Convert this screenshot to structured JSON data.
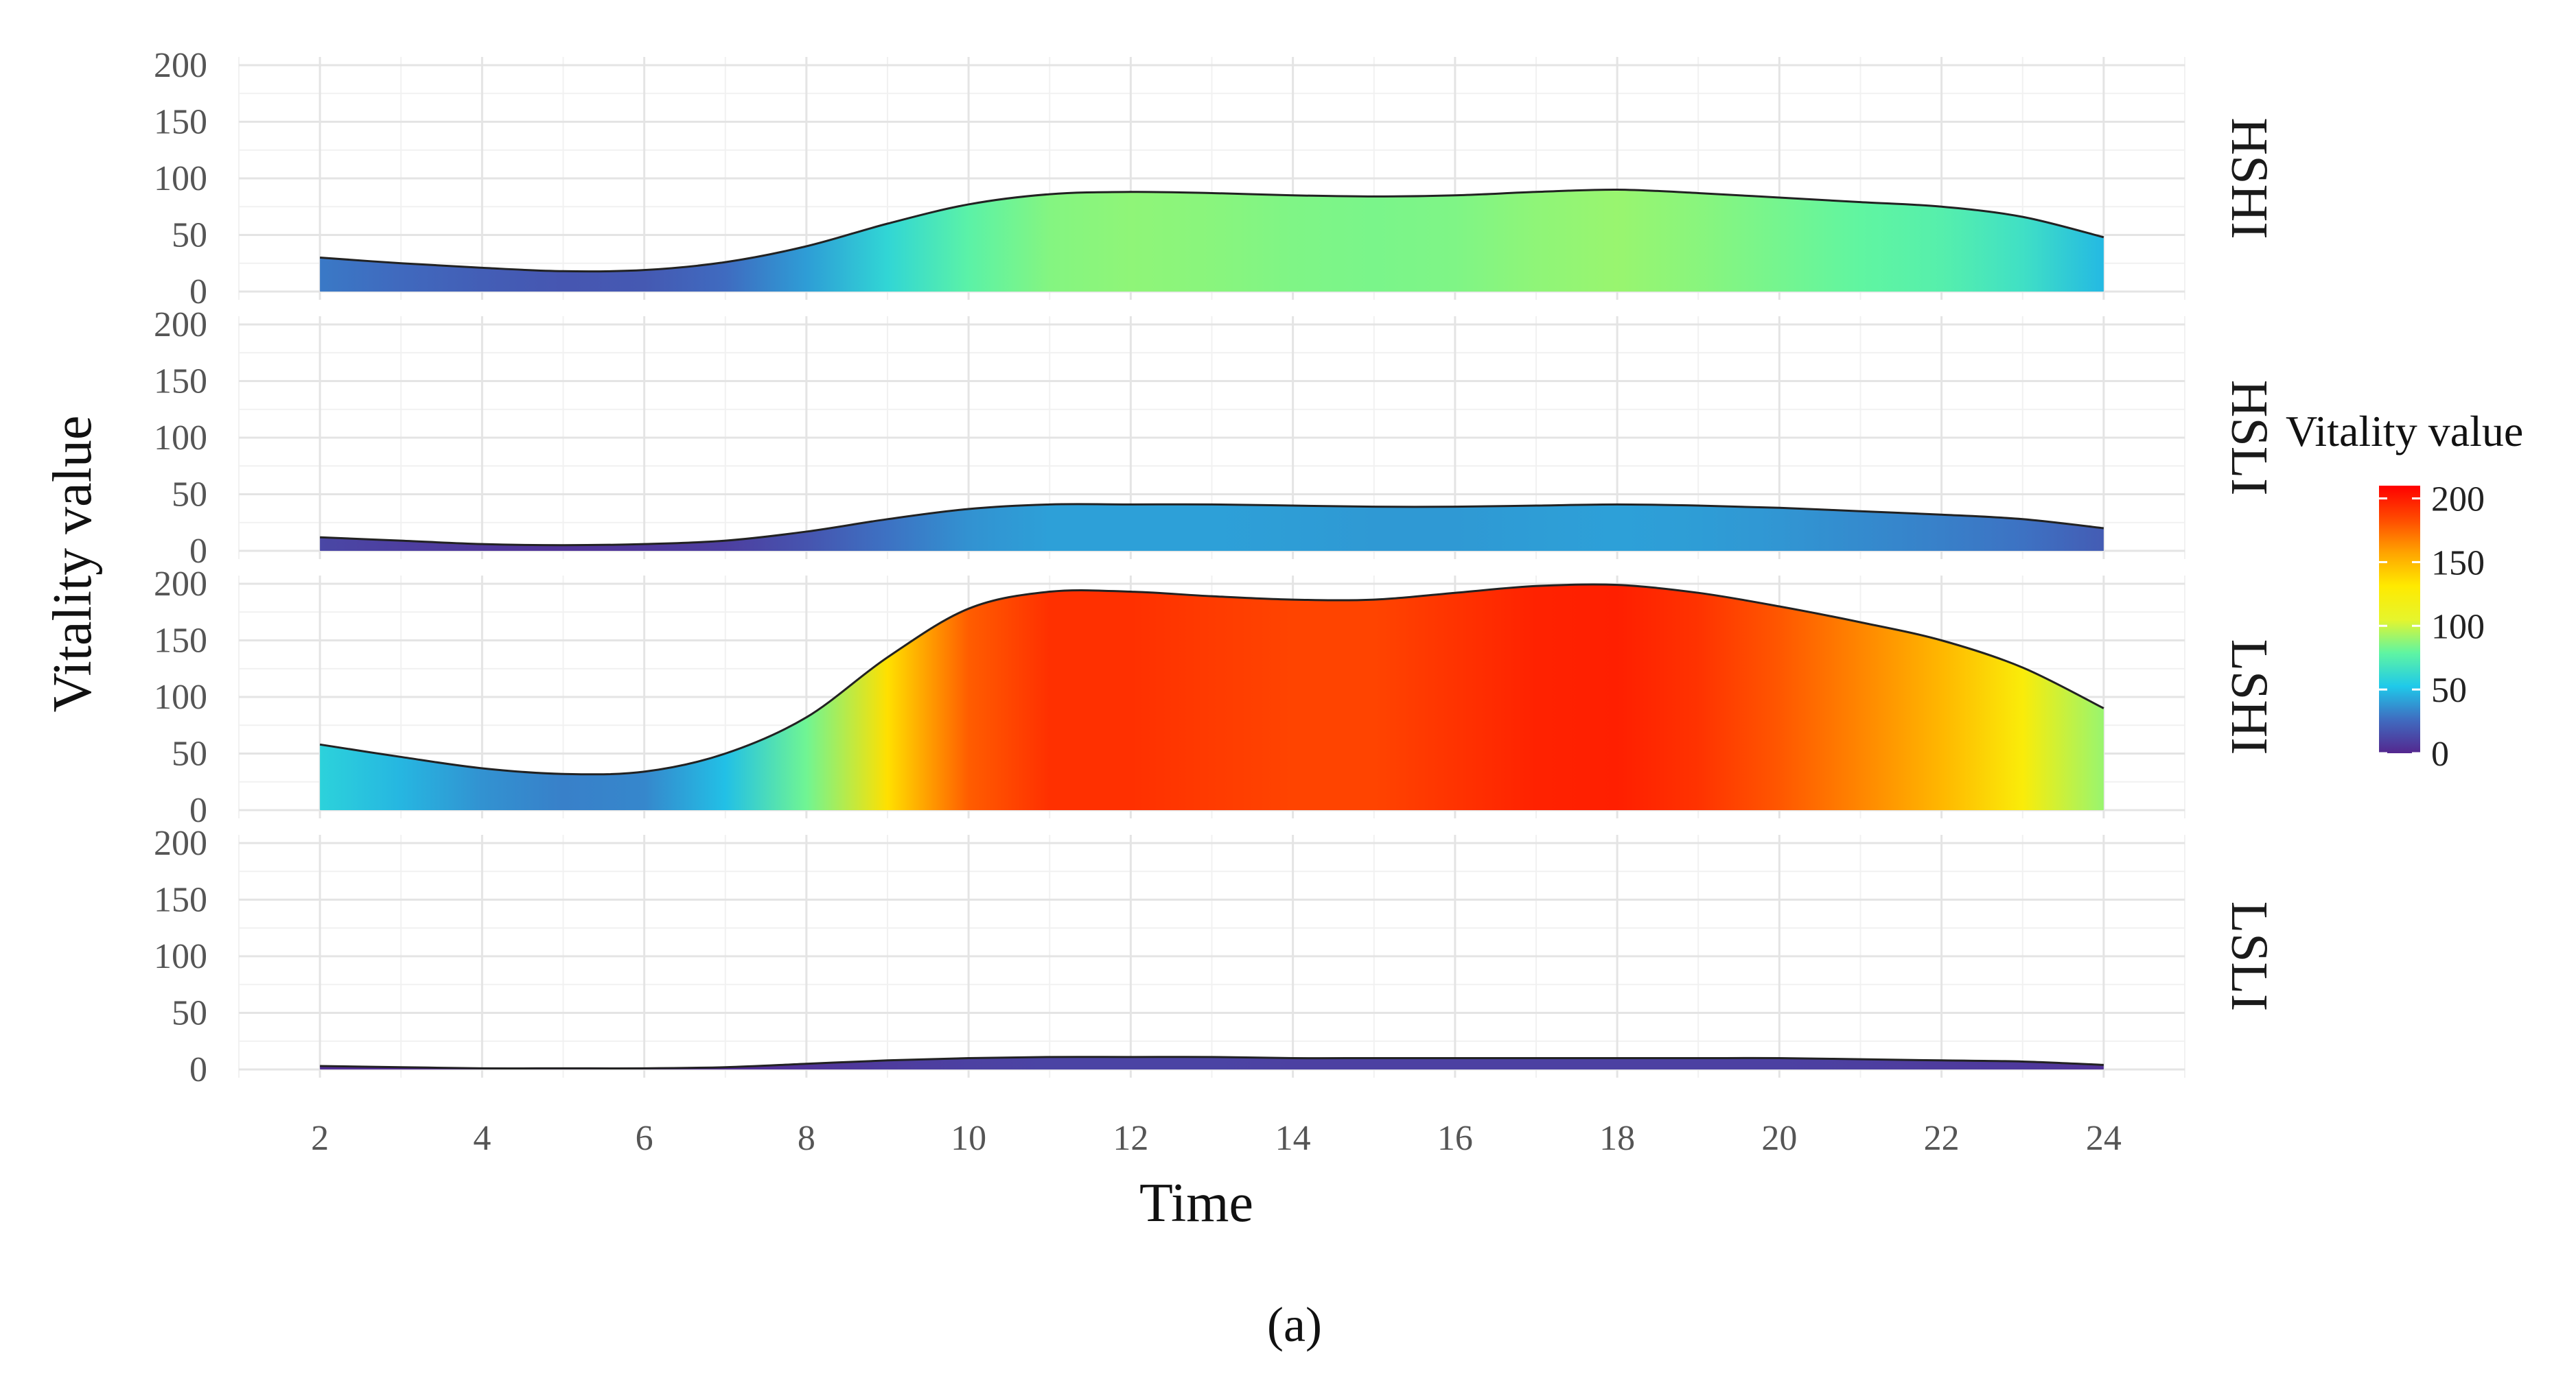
{
  "chart_data": {
    "type": "area",
    "subtype": "faceted gradient-filled density/area chart",
    "xlabel": "Time",
    "ylabel": "Vitality value",
    "xlim": [
      1,
      25
    ],
    "ylim": [
      0,
      200
    ],
    "x_ticks": [
      2,
      4,
      6,
      8,
      10,
      12,
      14,
      16,
      18,
      20,
      22,
      24
    ],
    "y_ticks": [
      0,
      50,
      100,
      150,
      200
    ],
    "grid": true,
    "x": [
      2,
      3,
      4,
      5,
      6,
      7,
      8,
      9,
      10,
      11,
      12,
      13,
      14,
      15,
      16,
      17,
      18,
      19,
      20,
      21,
      22,
      23,
      24
    ],
    "series": [
      {
        "name": "HSHI",
        "values": [
          30,
          25,
          21,
          18,
          19,
          26,
          40,
          60,
          77,
          86,
          88,
          87,
          85,
          84,
          85,
          88,
          90,
          87,
          83,
          79,
          75,
          66,
          48
        ]
      },
      {
        "name": "HSLI",
        "values": [
          12,
          9,
          6,
          5,
          6,
          9,
          17,
          28,
          37,
          41,
          41,
          41,
          40,
          39,
          39,
          40,
          41,
          40,
          38,
          35,
          32,
          28,
          20
        ]
      },
      {
        "name": "LSHI",
        "values": [
          58,
          47,
          37,
          32,
          34,
          50,
          82,
          135,
          178,
          193,
          193,
          189,
          186,
          186,
          192,
          198,
          199,
          192,
          180,
          166,
          150,
          126,
          90
        ]
      },
      {
        "name": "LSLI",
        "values": [
          3,
          2,
          1,
          1,
          1,
          2,
          5,
          8,
          10,
          11,
          11,
          11,
          10,
          10,
          10,
          10,
          10,
          10,
          10,
          9,
          8,
          7,
          4
        ]
      }
    ],
    "legend": {
      "title": "Vitality value",
      "type": "colorbar",
      "range": [
        0,
        210
      ],
      "ticks": [
        0,
        50,
        100,
        150,
        200
      ],
      "placement": "right",
      "colors": [
        "#54278f",
        "#3f6cc0",
        "#1fc9ea",
        "#5ff5a2",
        "#e6f52c",
        "#ffea00",
        "#ffa300",
        "#ff4a00",
        "#ff0000"
      ]
    },
    "caption": "(a)"
  }
}
